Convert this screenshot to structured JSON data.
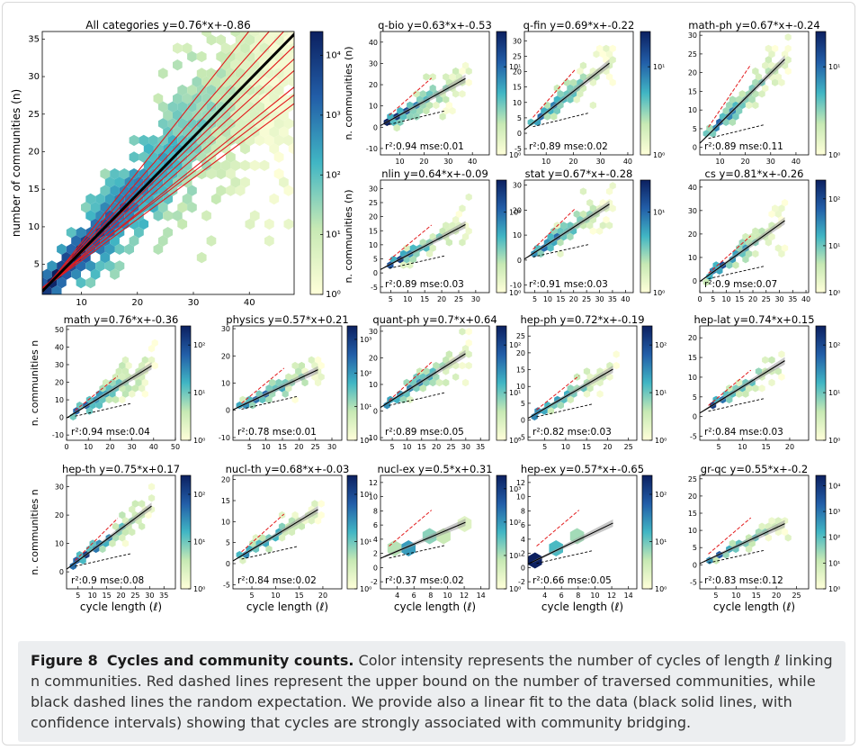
{
  "caption": {
    "figure_label": "Figure 8",
    "title": "Cycles and community counts.",
    "text": "Color intensity represents the number of cycles of length ℓ linking n communities. Red dashed lines represent the upper bound on the number of traversed communities, while black dashed lines the random expectation. We provide also a linear fit to the data (black solid lines, with confidence intervals) showing that cycles are strongly associated with community bridging."
  },
  "colors": {
    "hex_low": "#ffffcc",
    "hex_mid": "#41b6c4",
    "hex_high": "#0c2c84",
    "fit": "#000000",
    "bound": "#e31a1c",
    "random": "#000000"
  },
  "axis_labels": {
    "x": "cycle length (ℓ)",
    "y_main": "number of communities (n)",
    "y_row1": "n. communities (n)",
    "y_row2": "n. communities (n)",
    "y_row3": "n. communities n",
    "y_row4": "n. communities n"
  },
  "chart_data": [
    {
      "type": "heatmap",
      "title": "All categories  y=0.76*x+-0.86",
      "slope": 0.76,
      "intercept": -0.86,
      "xlim": [
        3,
        48
      ],
      "ylim": [
        1,
        36
      ],
      "xticks": [
        10,
        20,
        30,
        40
      ],
      "yticks": [
        5,
        10,
        15,
        20,
        25,
        30,
        35
      ],
      "cticks": [
        "10⁰",
        "10¹",
        "10²",
        "10³",
        "10⁴"
      ],
      "stats": "",
      "category_fits": [
        [
          0.94,
          -1.5
        ],
        [
          0.85,
          -1.0
        ],
        [
          0.8,
          -0.9
        ],
        [
          0.72,
          -0.5
        ],
        [
          0.65,
          -0.4
        ],
        [
          0.6,
          -0.2
        ],
        [
          0.55,
          0.0
        ],
        [
          0.68,
          -0.3
        ],
        [
          0.57,
          0.2
        ]
      ]
    },
    {
      "type": "heatmap",
      "title": "q-bio  y=0.63*x+-0.53",
      "slope": 0.63,
      "intercept": -0.53,
      "xlim": [
        2,
        47
      ],
      "ylim": [
        -13,
        45
      ],
      "xticks": [
        10,
        20,
        30,
        40
      ],
      "yticks": [
        -10,
        0,
        10,
        20,
        30,
        40
      ],
      "cticks": [
        "10⁰",
        "10¹"
      ],
      "stats": "r²:0.94 mse:0.01"
    },
    {
      "type": "heatmap",
      "title": "q-fin  y=0.69*x+-0.22",
      "slope": 0.69,
      "intercept": -0.22,
      "xlim": [
        2,
        42
      ],
      "ylim": [
        -7,
        33
      ],
      "xticks": [
        10,
        20,
        30,
        40
      ],
      "yticks": [
        -5,
        0,
        5,
        10,
        15,
        20,
        25,
        30
      ],
      "cticks": [
        "10⁰",
        "10¹"
      ],
      "stats": "r²:0.89 mse:0.02"
    },
    {
      "type": "heatmap",
      "title": "math-ph  y=0.67*x+-0.24",
      "slope": 0.67,
      "intercept": -0.24,
      "xlim": [
        2,
        45
      ],
      "ylim": [
        -2,
        31
      ],
      "xticks": [
        10,
        20,
        30,
        40
      ],
      "yticks": [
        0,
        5,
        10,
        15,
        20,
        25,
        30
      ],
      "cticks": [
        "10⁰",
        "10¹"
      ],
      "stats": "r²:0.89 mse:0.11"
    },
    {
      "type": "heatmap",
      "title": "nlin  y=0.64*x+-0.09",
      "slope": 0.64,
      "intercept": -0.09,
      "xlim": [
        2,
        34
      ],
      "ylim": [
        -7,
        33
      ],
      "xticks": [
        5,
        10,
        15,
        20,
        25,
        30
      ],
      "yticks": [
        -5,
        0,
        5,
        10,
        15,
        20,
        25,
        30
      ],
      "cticks": [
        "10⁰",
        "10¹"
      ],
      "stats": "r²:0.89 mse:0.03"
    },
    {
      "type": "heatmap",
      "title": "stat  y=0.67*x+-0.28",
      "slope": 0.67,
      "intercept": -0.28,
      "xlim": [
        1,
        43
      ],
      "ylim": [
        -13,
        32
      ],
      "xticks": [
        5,
        10,
        15,
        20,
        25,
        30,
        35,
        40
      ],
      "yticks": [
        -10,
        0,
        10,
        20,
        30
      ],
      "cticks": [
        "10⁰",
        "10¹"
      ],
      "stats": "r²:0.91 mse:0.03"
    },
    {
      "type": "heatmap",
      "title": "cs  y=0.81*x+-0.26",
      "slope": 0.81,
      "intercept": -0.26,
      "xlim": [
        0,
        41
      ],
      "ylim": [
        -5,
        43
      ],
      "xticks": [
        0,
        5,
        10,
        15,
        20,
        25,
        30,
        35,
        40
      ],
      "yticks": [
        0,
        10,
        20,
        30,
        40
      ],
      "cticks": [
        "10⁰",
        "10¹",
        "10²"
      ],
      "stats": "r²:0.9 mse:0.07"
    },
    {
      "type": "heatmap",
      "title": "math  y=0.76*x+-0.36",
      "slope": 0.76,
      "intercept": -0.36,
      "xlim": [
        0,
        50
      ],
      "ylim": [
        -13,
        52
      ],
      "xticks": [
        0,
        10,
        20,
        30,
        40,
        50
      ],
      "yticks": [
        -10,
        0,
        10,
        20,
        30,
        40,
        50
      ],
      "cticks": [
        "10⁰",
        "10¹",
        "10²"
      ],
      "stats": "r²:0.94 mse:0.04"
    },
    {
      "type": "heatmap",
      "title": "physics  y=0.57*x+0.21",
      "slope": 0.57,
      "intercept": 0.21,
      "xlim": [
        0,
        33
      ],
      "ylim": [
        -11,
        31
      ],
      "xticks": [
        5,
        10,
        15,
        20,
        25,
        30
      ],
      "yticks": [
        -10,
        0,
        10,
        20,
        30
      ],
      "cticks": [
        "10⁰",
        "10¹",
        "10²",
        "10³"
      ],
      "stats": "r²:0.78 mse:0.01"
    },
    {
      "type": "heatmap",
      "title": "quant-ph  y=0.7*x+0.64",
      "slope": 0.7,
      "intercept": 0.64,
      "xlim": [
        1,
        38
      ],
      "ylim": [
        -11,
        32
      ],
      "xticks": [
        5,
        10,
        15,
        20,
        25,
        30,
        35
      ],
      "yticks": [
        -10,
        0,
        10,
        20,
        30
      ],
      "cticks": [
        "10⁰",
        "10¹",
        "10²"
      ],
      "stats": "r²:0.89 mse:0.05"
    },
    {
      "type": "heatmap",
      "title": "hep-ph  y=0.72*x+-0.19",
      "slope": 0.72,
      "intercept": -0.19,
      "xlim": [
        1,
        27
      ],
      "ylim": [
        -6,
        28
      ],
      "xticks": [
        5,
        10,
        15,
        20,
        25
      ],
      "yticks": [
        -5,
        0,
        5,
        10,
        15,
        20,
        25
      ],
      "cticks": [
        "10⁰",
        "10¹",
        "10²"
      ],
      "stats": "r²:0.82 mse:0.03"
    },
    {
      "type": "heatmap",
      "title": "hep-lat  y=0.74*x+0.15",
      "slope": 0.74,
      "intercept": 0.15,
      "xlim": [
        1,
        24
      ],
      "ylim": [
        -6,
        23
      ],
      "xticks": [
        5,
        10,
        15,
        20
      ],
      "yticks": [
        -5,
        0,
        5,
        10,
        15,
        20
      ],
      "cticks": [
        "10⁰",
        "10¹",
        "10²"
      ],
      "stats": "r²:0.84 mse:0.03"
    },
    {
      "type": "heatmap",
      "title": "hep-th  y=0.75*x+0.17",
      "slope": 0.75,
      "intercept": 0.17,
      "xlim": [
        1,
        39
      ],
      "ylim": [
        -6,
        34
      ],
      "xticks": [
        5,
        10,
        15,
        20,
        25,
        30,
        35
      ],
      "yticks": [
        0,
        10,
        20,
        30
      ],
      "cticks": [
        "10⁰",
        "10¹",
        "10²"
      ],
      "stats": "r²:0.9 mse:0.08"
    },
    {
      "type": "heatmap",
      "title": "nucl-th  y=0.68*x+-0.03",
      "slope": 0.68,
      "intercept": -0.03,
      "xlim": [
        1,
        24
      ],
      "ylim": [
        -6,
        21
      ],
      "xticks": [
        5,
        10,
        15,
        20
      ],
      "yticks": [
        -5,
        0,
        5,
        10,
        15,
        20
      ],
      "cticks": [
        "10⁰",
        "10¹",
        "10²"
      ],
      "stats": "r²:0.84 mse:0.02"
    },
    {
      "type": "heatmap",
      "title": "nucl-ex  y=0.5*x+0.31",
      "slope": 0.5,
      "intercept": 0.31,
      "xlim": [
        2,
        15
      ],
      "ylim": [
        -3,
        13
      ],
      "xticks": [
        4,
        6,
        8,
        10,
        12,
        14
      ],
      "yticks": [
        -2,
        0,
        2,
        4,
        6,
        8,
        10,
        12
      ],
      "cticks": [
        "10⁰",
        "10¹",
        "10²",
        "10³"
      ],
      "stats": "r²:0.37 mse:0.02"
    },
    {
      "type": "heatmap",
      "title": "hep-ex  y=0.57*x+-0.65",
      "slope": 0.57,
      "intercept": -0.65,
      "xlim": [
        2,
        15
      ],
      "ylim": [
        -3,
        13
      ],
      "xticks": [
        4,
        6,
        8,
        10,
        12,
        14
      ],
      "yticks": [
        -2,
        0,
        2,
        4,
        6,
        8,
        10,
        12
      ],
      "cticks": [
        "10⁰",
        "10¹",
        "10²"
      ],
      "stats": "r²:0.66 mse:0.05"
    },
    {
      "type": "heatmap",
      "title": "gr-qc  y=0.55*x+-0.2",
      "slope": 0.55,
      "intercept": -0.2,
      "xlim": [
        1,
        28
      ],
      "ylim": [
        -7,
        26
      ],
      "xticks": [
        5,
        10,
        15,
        20,
        25
      ],
      "yticks": [
        -5,
        0,
        5,
        10,
        15,
        20,
        25
      ],
      "cticks": [
        "10⁰",
        "10¹",
        "10²",
        "10³",
        "10⁴"
      ],
      "stats": "r²:0.83 mse:0.12"
    }
  ]
}
